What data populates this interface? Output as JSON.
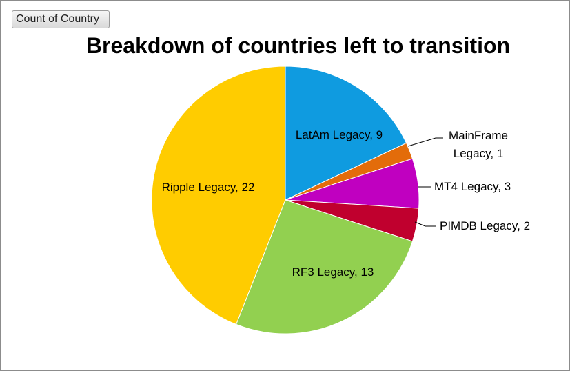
{
  "pivot_field_button": {
    "label": "Count of Country"
  },
  "chart_data": {
    "type": "pie",
    "title": "Breakdown of countries left to transition",
    "slices": [
      {
        "label": "LatAm Legacy",
        "value": 9,
        "data_label": "LatAm Legacy, 9",
        "color": "#0f9be0"
      },
      {
        "label": "MainFrame Legacy",
        "value": 1,
        "data_label_lines": [
          "MainFrame",
          "Legacy, 1"
        ],
        "color": "#e36c0a"
      },
      {
        "label": "MT4 Legacy",
        "value": 3,
        "data_label": "MT4 Legacy, 3",
        "color": "#c000c0"
      },
      {
        "label": "PIMDB Legacy",
        "value": 2,
        "data_label": "PIMDB Legacy, 2",
        "color": "#c0002e"
      },
      {
        "label": "RF3 Legacy",
        "value": 13,
        "data_label": "RF3 Legacy, 13",
        "color": "#92d050"
      },
      {
        "label": "Ripple Legacy",
        "value": 22,
        "data_label": "Ripple Legacy, 22",
        "color": "#ffcc00"
      }
    ]
  }
}
